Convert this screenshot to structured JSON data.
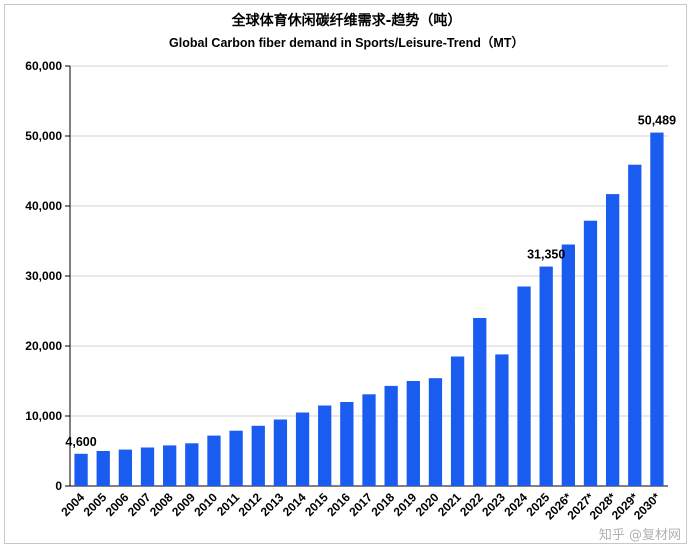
{
  "chart_data": {
    "type": "bar",
    "title": "全球体育休闲碳纤维需求-趋势（吨）",
    "subtitle": "Global Carbon fiber demand in Sports/Leisure-Trend（MT）",
    "xlabel": "",
    "ylabel": "",
    "ylim": [
      0,
      60000
    ],
    "yticks": [
      0,
      10000,
      20000,
      30000,
      40000,
      50000,
      60000
    ],
    "ytick_labels": [
      "0",
      "10,000",
      "20,000",
      "30,000",
      "40,000",
      "50,000",
      "60,000"
    ],
    "grid": true,
    "bar_color": "#1a5cf0",
    "categories": [
      "2004",
      "2005",
      "2006",
      "2007",
      "2008",
      "2009",
      "2010",
      "2011",
      "2012",
      "2013",
      "2014",
      "2015",
      "2016",
      "2017",
      "2018",
      "2019",
      "2020",
      "2021",
      "2022",
      "2023",
      "2024",
      "2025",
      "2026*",
      "2027*",
      "2028*",
      "2029*",
      "2030*"
    ],
    "values": [
      4600,
      5000,
      5200,
      5500,
      5800,
      6100,
      7200,
      7900,
      8600,
      9500,
      10500,
      11500,
      12000,
      13100,
      14300,
      15000,
      15400,
      18500,
      24000,
      18800,
      28500,
      31350,
      34500,
      37900,
      41700,
      45900,
      50489
    ],
    "data_labels": [
      {
        "index": 0,
        "text": "4,600"
      },
      {
        "index": 21,
        "text": "31,350"
      },
      {
        "index": 26,
        "text": "50,489"
      }
    ]
  },
  "watermark": "知乎 @复材网"
}
